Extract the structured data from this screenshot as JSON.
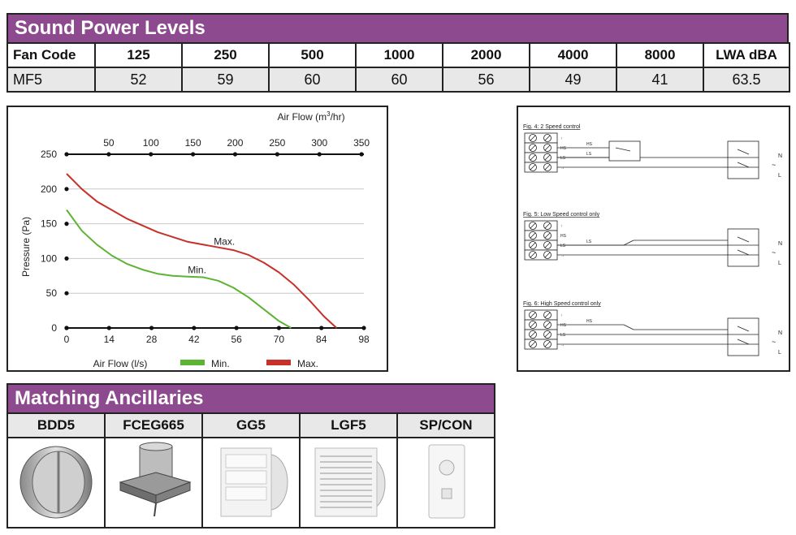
{
  "sound_power": {
    "title": "Sound Power Levels",
    "headers": [
      "Fan Code",
      "125",
      "250",
      "500",
      "1000",
      "2000",
      "4000",
      "8000",
      "LWA dBA"
    ],
    "row": [
      "MF5",
      "52",
      "59",
      "60",
      "60",
      "56",
      "49",
      "41",
      "63.5"
    ]
  },
  "chart_data": {
    "type": "line",
    "title": "",
    "xlabel": "Air Flow (l/s)",
    "x2label": "Air Flow (m³/hr)",
    "x2label_main": "Air Flow (m",
    "x2label_sup": "3",
    "x2label_end": "/hr)",
    "ylabel": "Pressure (Pa)",
    "xlim": [
      0,
      98
    ],
    "ylim": [
      0,
      250
    ],
    "x_ticks": [
      0,
      14,
      28,
      42,
      56,
      70,
      84,
      98
    ],
    "x2_ticks": [
      50,
      100,
      150,
      200,
      250,
      300,
      350
    ],
    "y_ticks": [
      0,
      50,
      100,
      150,
      200,
      250
    ],
    "grid": true,
    "legend_position": "bottom",
    "series": [
      {
        "name": "Min.",
        "color": "#5db332",
        "x": [
          0,
          5,
          10,
          15,
          20,
          25,
          30,
          35,
          40,
          45,
          50,
          55,
          60,
          65,
          70,
          74
        ],
        "y": [
          170,
          140,
          120,
          104,
          92,
          84,
          78,
          75,
          74,
          73,
          68,
          58,
          44,
          27,
          10,
          0
        ]
      },
      {
        "name": "Max.",
        "color": "#c8302a",
        "x": [
          0,
          5,
          10,
          20,
          30,
          40,
          50,
          55,
          60,
          65,
          70,
          75,
          80,
          85,
          89
        ],
        "y": [
          222,
          200,
          182,
          157,
          138,
          124,
          116,
          112,
          105,
          94,
          80,
          62,
          40,
          16,
          0
        ]
      }
    ],
    "annotations": [
      "Min.",
      "Max."
    ]
  },
  "wiring": {
    "figures": [
      {
        "title": "Fig. 4: 2 Speed control",
        "labels": [
          "HS",
          "LS"
        ]
      },
      {
        "title": "Fig. 5: Low Speed control only",
        "labels": [
          "LS"
        ]
      },
      {
        "title": "Fig. 6: High Speed control only",
        "labels": [
          "HS"
        ]
      }
    ],
    "terminal_labels": [
      "↑",
      "HS",
      "LS",
      "→"
    ],
    "right_labels": [
      "N",
      "~",
      "L"
    ]
  },
  "ancillaries": {
    "title": "Matching Ancillaries",
    "items": [
      "BDD5",
      "FCEG665",
      "GG5",
      "LGF5",
      "SP/CON"
    ]
  },
  "colors": {
    "header_purple": "#8e4a8e",
    "min": "#5db332",
    "max": "#c8302a"
  }
}
